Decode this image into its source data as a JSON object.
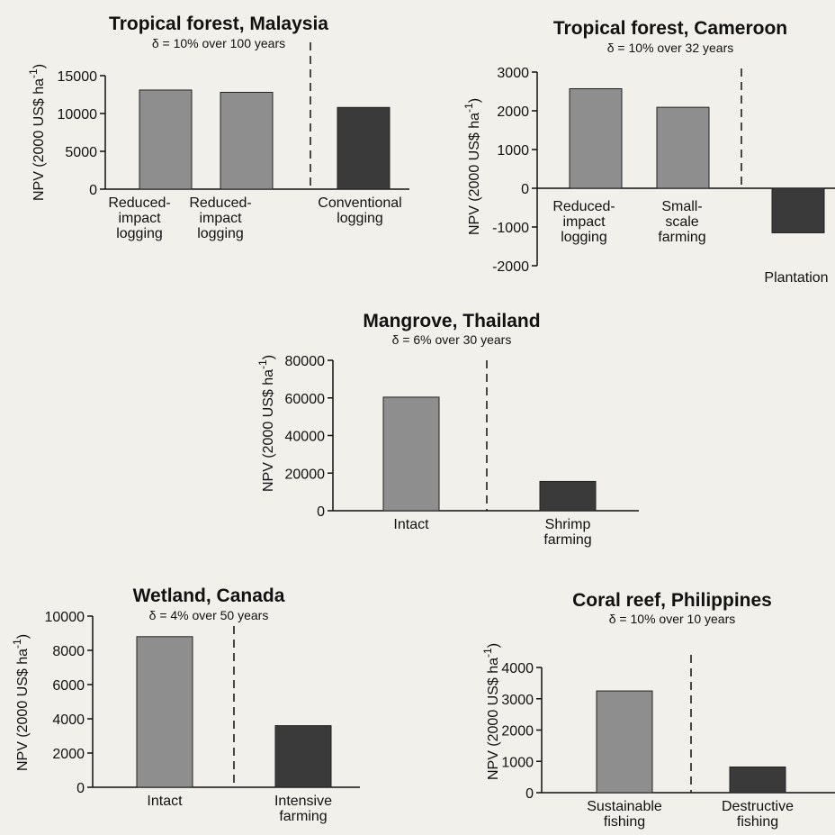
{
  "colors": {
    "light_bar": "#8e8e8e",
    "dark_bar": "#3a3a3a",
    "background": "#f2f0ea"
  },
  "chart_data": [
    {
      "type": "bar",
      "title": "Tropical forest, Malaysia",
      "subtitle": "δ = 10% over 100 years",
      "ylabel_main": "NPV (2000 US$ ha",
      "ylabel_sup": "-1",
      "ylabel_tail": ")",
      "categories": [
        [
          "Reduced-",
          "impact",
          "logging"
        ],
        [
          "Reduced-",
          "impact",
          "logging"
        ],
        [
          "Conventional",
          "logging"
        ]
      ],
      "values": [
        13100,
        12800,
        10800
      ],
      "shades": [
        "light",
        "light",
        "dark"
      ],
      "ylim": [
        0,
        15000
      ],
      "yticks": [
        0,
        5000,
        10000,
        15000
      ],
      "ytick_labels": [
        "0",
        "5000",
        "10000",
        "15000"
      ],
      "divider_after": 2
    },
    {
      "type": "bar",
      "title": "Tropical forest, Cameroon",
      "subtitle": "δ = 10% over 32 years",
      "ylabel_main": "NPV (2000 US$ ha",
      "ylabel_sup": "-1",
      "ylabel_tail": ")",
      "categories": [
        [
          "Reduced-",
          "impact",
          "logging"
        ],
        [
          "Small-",
          "scale",
          "farming"
        ],
        [
          "Plantation"
        ]
      ],
      "values": [
        2570,
        2090,
        -1150
      ],
      "shades": [
        "light",
        "light",
        "dark"
      ],
      "ylim": [
        -2000,
        3000
      ],
      "yticks": [
        -2000,
        -1000,
        0,
        1000,
        2000,
        3000
      ],
      "ytick_labels": [
        "-2000",
        "-1000",
        "0",
        "1000",
        "2000",
        "3000"
      ],
      "divider_after": 2
    },
    {
      "type": "bar",
      "title": "Mangrove, Thailand",
      "subtitle": "δ = 6% over 30 years",
      "ylabel_main": "NPV (2000 US$ ha",
      "ylabel_sup": "-1",
      "ylabel_tail": ")",
      "categories": [
        [
          "Intact"
        ],
        [
          "Shrimp",
          "farming"
        ]
      ],
      "values": [
        60400,
        15600
      ],
      "shades": [
        "light",
        "dark"
      ],
      "ylim": [
        0,
        80000
      ],
      "yticks": [
        0,
        20000,
        40000,
        60000,
        80000
      ],
      "ytick_labels": [
        "0",
        "20000",
        "40000",
        "60000",
        "80000"
      ],
      "divider_after": 1
    },
    {
      "type": "bar",
      "title": "Wetland, Canada",
      "subtitle": "δ = 4% over 50 years",
      "ylabel_main": "NPV (2000 US$ ha",
      "ylabel_sup": "-1",
      "ylabel_tail": ")",
      "categories": [
        [
          "Intact"
        ],
        [
          "Intensive",
          "farming"
        ]
      ],
      "values": [
        8800,
        3600
      ],
      "shades": [
        "light",
        "dark"
      ],
      "ylim": [
        0,
        10000
      ],
      "yticks": [
        0,
        2000,
        4000,
        6000,
        8000,
        10000
      ],
      "ytick_labels": [
        "0",
        "2000",
        "4000",
        "6000",
        "8000",
        "10000"
      ],
      "divider_after": 1
    },
    {
      "type": "bar",
      "title": "Coral reef, Philippines",
      "subtitle": "δ = 10% over 10 years",
      "ylabel_main": "NPV (2000 US$ ha",
      "ylabel_sup": "-1",
      "ylabel_tail": ")",
      "categories": [
        [
          "Sustainable",
          "fishing"
        ],
        [
          "Destructive",
          "fishing"
        ]
      ],
      "values": [
        3250,
        820
      ],
      "shades": [
        "light",
        "dark"
      ],
      "ylim": [
        0,
        4000
      ],
      "yticks": [
        0,
        1000,
        2000,
        3000,
        4000
      ],
      "ytick_labels": [
        "0",
        "1000",
        "2000",
        "3000",
        "4000"
      ],
      "divider_after": 1
    }
  ]
}
